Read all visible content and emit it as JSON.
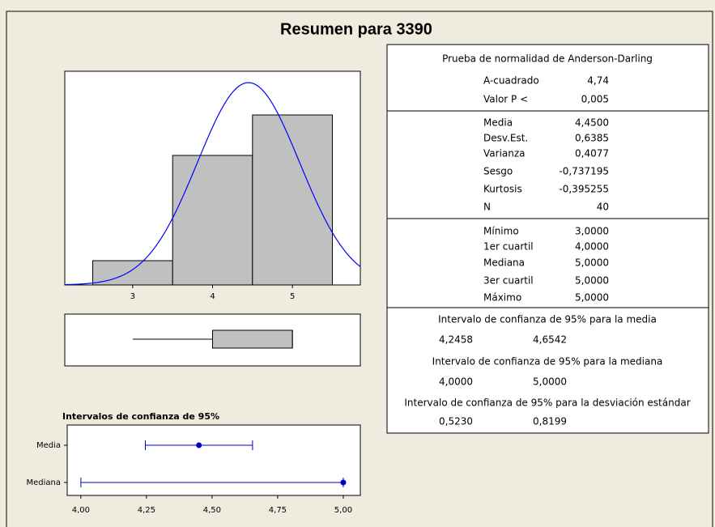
{
  "title": "Resumen para 3390",
  "chart_data": [
    {
      "type": "histogram",
      "bins": [
        2.5,
        3.5,
        4.5,
        5.5
      ],
      "values": [
        3,
        16,
        21
      ],
      "color": "#c0c0c0",
      "xlim": [
        2.15,
        5.85
      ],
      "ylim": [
        0,
        26.4
      ],
      "xticks": [
        3,
        4,
        5
      ],
      "fit": {
        "mean": 4.45,
        "sd": 0.6385,
        "color": "#0000ff"
      }
    },
    {
      "type": "boxplot",
      "min": 3,
      "q1": 4,
      "median": 5,
      "q3": 5,
      "max": 5,
      "color": "#c0c0c0",
      "xlim": [
        2.15,
        5.85
      ]
    },
    {
      "type": "interval",
      "title": "Intervalos de confianza de 95%",
      "categories": [
        "Media",
        "Mediana"
      ],
      "estimates": [
        4.45,
        5
      ],
      "lower": [
        4.2458,
        4.0
      ],
      "upper": [
        4.6542,
        5.0
      ],
      "color": "#0000cc",
      "xlim": [
        3.948,
        5.065
      ],
      "xticks": [
        {
          "value": 4,
          "label": "4,00"
        },
        {
          "value": 4.25,
          "label": "4,25"
        },
        {
          "value": 4.5,
          "label": "4,50"
        },
        {
          "value": 4.75,
          "label": "4,75"
        },
        {
          "value": 5,
          "label": "5,00"
        }
      ]
    }
  ],
  "table": {
    "normality": {
      "heading": "Prueba de normalidad de Anderson-Darling",
      "rows": [
        [
          "A-cuadrado",
          "4,74"
        ],
        [
          "Valor P <",
          "0,005"
        ]
      ]
    },
    "moments": {
      "rows": [
        [
          "Media",
          "4,4500"
        ],
        [
          "Desv.Est.",
          "0,6385"
        ],
        [
          "Varianza",
          "0,4077"
        ],
        [
          "Sesgo",
          "-0,737195"
        ],
        [
          "Kurtosis",
          "-0,395255"
        ],
        [
          "N",
          "40"
        ]
      ]
    },
    "quartiles": {
      "rows": [
        [
          "Mínimo",
          "3,0000"
        ],
        [
          "1er cuartil",
          "4,0000"
        ],
        [
          "Mediana",
          "5,0000"
        ],
        [
          "3er cuartil",
          "5,0000"
        ],
        [
          "Máximo",
          "5,0000"
        ]
      ]
    },
    "intervals": [
      {
        "heading": "Intervalo de confianza de 95% para la media",
        "values": [
          "4,2458",
          "4,6542"
        ]
      },
      {
        "heading": "Intervalo de confianza de 95% para la mediana",
        "values": [
          "4,0000",
          "5,0000"
        ]
      },
      {
        "heading": "Intervalo de confianza de 95% para la desviación estándar",
        "values": [
          "0,5230",
          "0,8199"
        ]
      }
    ]
  }
}
